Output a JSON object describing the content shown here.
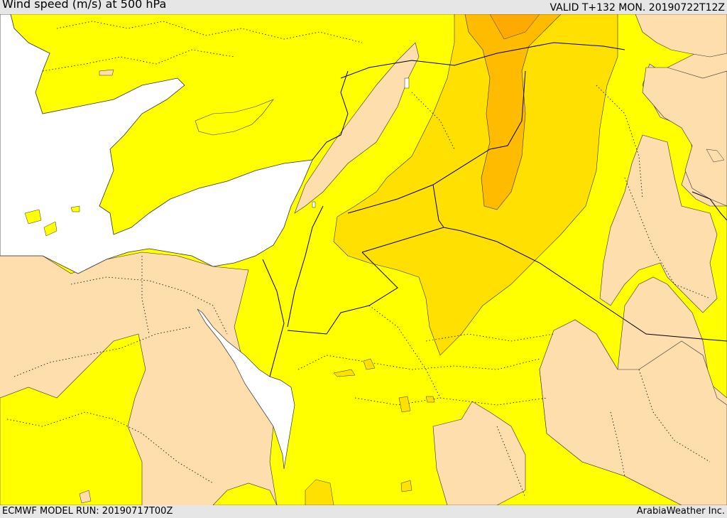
{
  "header": {
    "title": "Wind speed (m/s) at 500 hPa",
    "valid": "VALID T+132 MON. 20190722T12Z"
  },
  "footer": {
    "model_run": "ECMWF MODEL RUN: 20190717T00Z",
    "credit": "ArabiaWeather Inc."
  },
  "colors": {
    "sea": "#ffffff",
    "land_calm": "#ffdead",
    "wind_band_1": "#ffff00",
    "wind_band_2": "#ffe000",
    "wind_band_3": "#ffbb00",
    "borders": "#000000"
  }
}
